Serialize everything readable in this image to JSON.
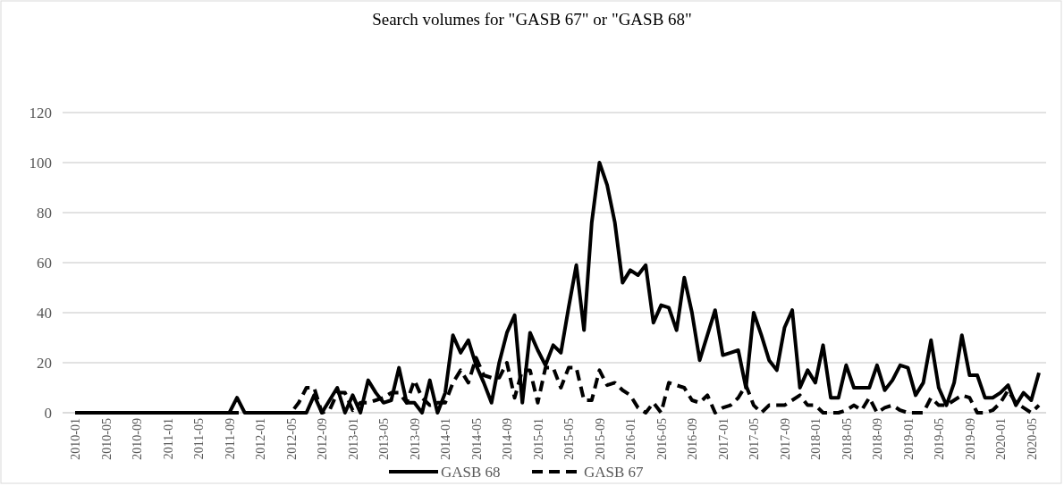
{
  "chart_data": {
    "type": "line",
    "title": "Search volumes for \"GASB 67\" or \"GASB 68\"",
    "categories": [
      "2010-01",
      null,
      null,
      null,
      "2010-05",
      null,
      null,
      null,
      "2010-09",
      null,
      null,
      null,
      "2011-01",
      null,
      null,
      null,
      "2011-05",
      null,
      null,
      null,
      "2011-09",
      null,
      null,
      null,
      "2012-01",
      null,
      null,
      null,
      "2012-05",
      null,
      null,
      null,
      "2012-09",
      null,
      null,
      null,
      "2013-01",
      null,
      null,
      null,
      "2013-05",
      null,
      null,
      null,
      "2013-09",
      null,
      null,
      null,
      "2014-01",
      null,
      null,
      null,
      "2014-05",
      null,
      null,
      null,
      "2014-09",
      null,
      null,
      null,
      "2015-01",
      null,
      null,
      null,
      "2015-05",
      null,
      null,
      null,
      "2015-09",
      null,
      null,
      null,
      "2016-01",
      null,
      null,
      null,
      "2016-05",
      null,
      null,
      null,
      "2016-09",
      null,
      null,
      null,
      "2017-01",
      null,
      null,
      null,
      "2017-05",
      null,
      null,
      null,
      "2017-09",
      null,
      null,
      null,
      "2018-01",
      null,
      null,
      null,
      "2018-05",
      null,
      null,
      null,
      "2018-09",
      null,
      null,
      null,
      "2019-01",
      null,
      null,
      null,
      "2019-05",
      null,
      null,
      null,
      "2019-09",
      null,
      null,
      null,
      "2020-01",
      null,
      null,
      null,
      "2020-05",
      null
    ],
    "series": [
      {
        "name": "GASB 68",
        "color": "#000000",
        "line_style": "solid",
        "values": [
          0,
          0,
          0,
          0,
          0,
          0,
          0,
          0,
          0,
          0,
          0,
          0,
          0,
          0,
          0,
          0,
          0,
          0,
          0,
          0,
          0,
          6,
          0,
          0,
          0,
          0,
          0,
          0,
          0,
          0,
          0,
          7,
          0,
          5,
          10,
          0,
          7,
          0,
          13,
          8,
          4,
          5,
          18,
          4,
          4,
          0,
          13,
          0,
          8,
          31,
          24,
          29,
          19,
          12,
          4,
          20,
          32,
          39,
          4,
          32,
          25,
          19,
          27,
          24,
          42,
          59,
          33,
          76,
          100,
          91,
          76,
          52,
          57,
          55,
          59,
          36,
          43,
          42,
          33,
          54,
          40,
          21,
          31,
          41,
          23,
          24,
          25,
          10,
          40,
          31,
          21,
          17,
          34,
          41,
          10,
          17,
          12,
          27,
          6,
          6,
          19,
          10,
          10,
          10,
          19,
          9,
          13,
          19,
          18,
          7,
          12,
          29,
          10,
          3,
          12,
          31,
          15,
          15,
          6,
          6,
          8,
          11,
          3,
          8,
          5,
          16
        ]
      },
      {
        "name": "GASB 67",
        "color": "#000000",
        "line_style": "dashed",
        "values": [
          0,
          0,
          0,
          0,
          0,
          0,
          0,
          0,
          0,
          0,
          0,
          0,
          0,
          0,
          0,
          0,
          0,
          0,
          0,
          0,
          0,
          0,
          0,
          0,
          0,
          0,
          0,
          0,
          0,
          4,
          10,
          10,
          0,
          1,
          8,
          8,
          1,
          4,
          4,
          5,
          6,
          8,
          8,
          4,
          13,
          6,
          3,
          4,
          4,
          12,
          17,
          12,
          22,
          15,
          14,
          14,
          20,
          6,
          17,
          17,
          4,
          18,
          18,
          10,
          18,
          18,
          5,
          5,
          17,
          11,
          12,
          9,
          7,
          2,
          0,
          4,
          0,
          12,
          11,
          10,
          5,
          4,
          7,
          0,
          2,
          3,
          6,
          11,
          3,
          0,
          3,
          3,
          3,
          5,
          7,
          3,
          3,
          0,
          0,
          0,
          1,
          3,
          1,
          6,
          0,
          2,
          3,
          1,
          0,
          0,
          0,
          6,
          3,
          3,
          5,
          7,
          6,
          0,
          0,
          1,
          4,
          9,
          4,
          2,
          0,
          3
        ]
      }
    ],
    "ylim": [
      0,
      120
    ],
    "yticks": [
      0,
      20,
      40,
      60,
      80,
      100,
      120
    ],
    "grid": "y",
    "legend": "bottom",
    "marker": "none"
  }
}
